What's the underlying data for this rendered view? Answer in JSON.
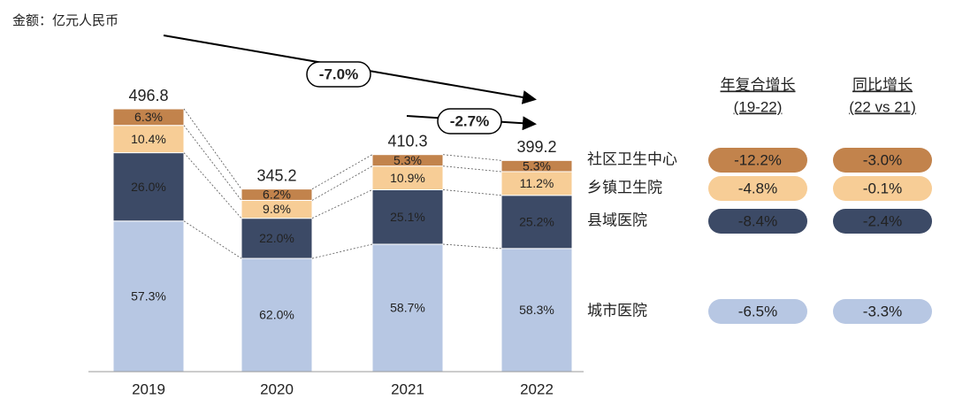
{
  "chart_data": {
    "type": "bar",
    "unit_label": "金额：亿元人民币",
    "categories": [
      "2019",
      "2020",
      "2021",
      "2022"
    ],
    "totals": [
      496.8,
      345.2,
      410.3,
      399.2
    ],
    "series": [
      {
        "name": "城市医院",
        "color": "#b7c7e3",
        "values": [
          57.3,
          62.0,
          58.7,
          58.3
        ],
        "value_labels": [
          "57.3%",
          "62.0%",
          "58.7%",
          "58.3%"
        ]
      },
      {
        "name": "县域医院",
        "color": "#3c4a66",
        "values": [
          26.0,
          22.0,
          25.1,
          25.2
        ],
        "value_labels": [
          "26.0%",
          "22.0%",
          "25.1%",
          "25.2%"
        ]
      },
      {
        "name": "乡镇卫生院",
        "color": "#f7cd96",
        "values": [
          10.4,
          9.8,
          10.9,
          11.2
        ],
        "value_labels": [
          "10.4%",
          "9.8%",
          "10.9%",
          "11.2%"
        ]
      },
      {
        "name": "社区卫生中心",
        "color": "#c2834c",
        "values": [
          6.3,
          6.2,
          5.3,
          5.3
        ],
        "value_labels": [
          "6.3%",
          "6.2%",
          "5.3%",
          "5.3%"
        ]
      }
    ],
    "annotations": [
      "-7.0%",
      "-2.7%"
    ],
    "growth_table": {
      "headers": [
        [
          "年复合增长",
          "(19-22)"
        ],
        [
          "同比增长",
          "(22 vs 21)"
        ]
      ],
      "rows": [
        [
          "-12.2%",
          "-3.0%"
        ],
        [
          "-4.8%",
          "-0.1%"
        ],
        [
          "-8.4%",
          "-2.4%"
        ],
        [
          "-6.5%",
          "-3.3%"
        ]
      ]
    }
  }
}
